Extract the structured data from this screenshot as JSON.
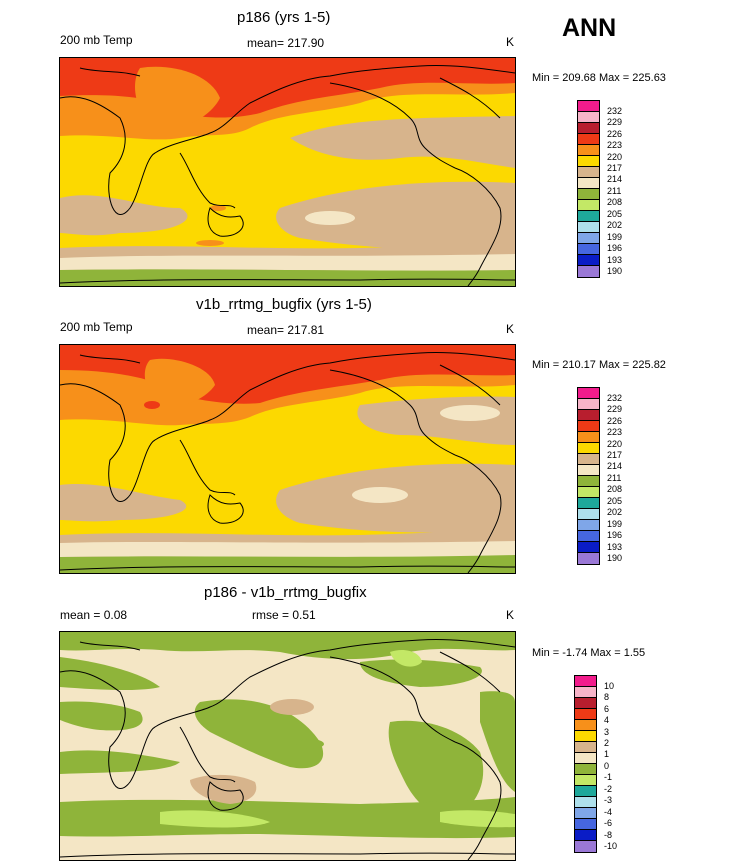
{
  "season": "ANN",
  "panels": [
    {
      "title": "p186 (yrs 1-5)",
      "left_label": "200 mb Temp",
      "mean_label": "mean= 217.90",
      "units": "K",
      "minmax": "Min = 209.68 Max = 225.63",
      "colorbar": {
        "levels": [
          "232",
          "229",
          "226",
          "223",
          "220",
          "217",
          "214",
          "211",
          "208",
          "205",
          "202",
          "199",
          "196",
          "193",
          "190"
        ],
        "colors": [
          "#f21c8c",
          "#f7b4c8",
          "#b81e2e",
          "#ee3a16",
          "#f7901a",
          "#fcd900",
          "#d7b48c",
          "#f4e6c5",
          "#8fb43a",
          "#c3e866",
          "#1ea89b",
          "#aee0ec",
          "#7fa6e8",
          "#4666e0",
          "#0a1cc6",
          "#9a78d6"
        ]
      }
    },
    {
      "title": "v1b_rrtmg_bugfix (yrs 1-5)",
      "left_label": "200 mb Temp",
      "mean_label": "mean= 217.81",
      "units": "K",
      "minmax": "Min = 210.17 Max = 225.82",
      "colorbar": {
        "levels": [
          "232",
          "229",
          "226",
          "223",
          "220",
          "217",
          "214",
          "211",
          "208",
          "205",
          "202",
          "199",
          "196",
          "193",
          "190"
        ],
        "colors": [
          "#f21c8c",
          "#f7b4c8",
          "#b81e2e",
          "#ee3a16",
          "#f7901a",
          "#fcd900",
          "#d7b48c",
          "#f4e6c5",
          "#8fb43a",
          "#c3e866",
          "#1ea89b",
          "#aee0ec",
          "#7fa6e8",
          "#4666e0",
          "#0a1cc6",
          "#9a78d6"
        ]
      }
    },
    {
      "title": "p186 - v1b_rrtmg_bugfix",
      "left_label": "mean =   0.08",
      "mean_label": "rmse =   0.51",
      "units": "K",
      "minmax": "Min =  -1.74 Max =   1.55",
      "colorbar": {
        "levels": [
          "10",
          "8",
          "6",
          "4",
          "3",
          "2",
          "1",
          "0",
          "-1",
          "-2",
          "-3",
          "-4",
          "-6",
          "-8",
          "-10"
        ],
        "colors": [
          "#f21c8c",
          "#f7b4c8",
          "#b81e2e",
          "#ee3a16",
          "#f7901a",
          "#fcd900",
          "#d7b48c",
          "#f4e6c5",
          "#8fb43a",
          "#c3e866",
          "#1ea89b",
          "#aee0ec",
          "#7fa6e8",
          "#4666e0",
          "#0a1cc6",
          "#9a78d6"
        ]
      }
    }
  ],
  "chart_data": [
    {
      "type": "heatmap",
      "title": "p186 (yrs 1-5)",
      "variable": "200 mb Temp",
      "units": "K",
      "mean": 217.9,
      "min": 209.68,
      "max": 225.63,
      "contour_levels": [
        190,
        193,
        196,
        199,
        202,
        205,
        208,
        211,
        214,
        217,
        220,
        223,
        226,
        229,
        232
      ]
    },
    {
      "type": "heatmap",
      "title": "v1b_rrtmg_bugfix (yrs 1-5)",
      "variable": "200 mb Temp",
      "units": "K",
      "mean": 217.81,
      "min": 210.17,
      "max": 225.82,
      "contour_levels": [
        190,
        193,
        196,
        199,
        202,
        205,
        208,
        211,
        214,
        217,
        220,
        223,
        226,
        229,
        232
      ]
    },
    {
      "type": "heatmap",
      "title": "p186 - v1b_rrtmg_bugfix",
      "units": "K",
      "mean": 0.08,
      "rmse": 0.51,
      "min": -1.74,
      "max": 1.55,
      "contour_levels": [
        -10,
        -8,
        -6,
        -4,
        -3,
        -2,
        -1,
        0,
        1,
        2,
        3,
        4,
        6,
        8,
        10
      ]
    }
  ]
}
